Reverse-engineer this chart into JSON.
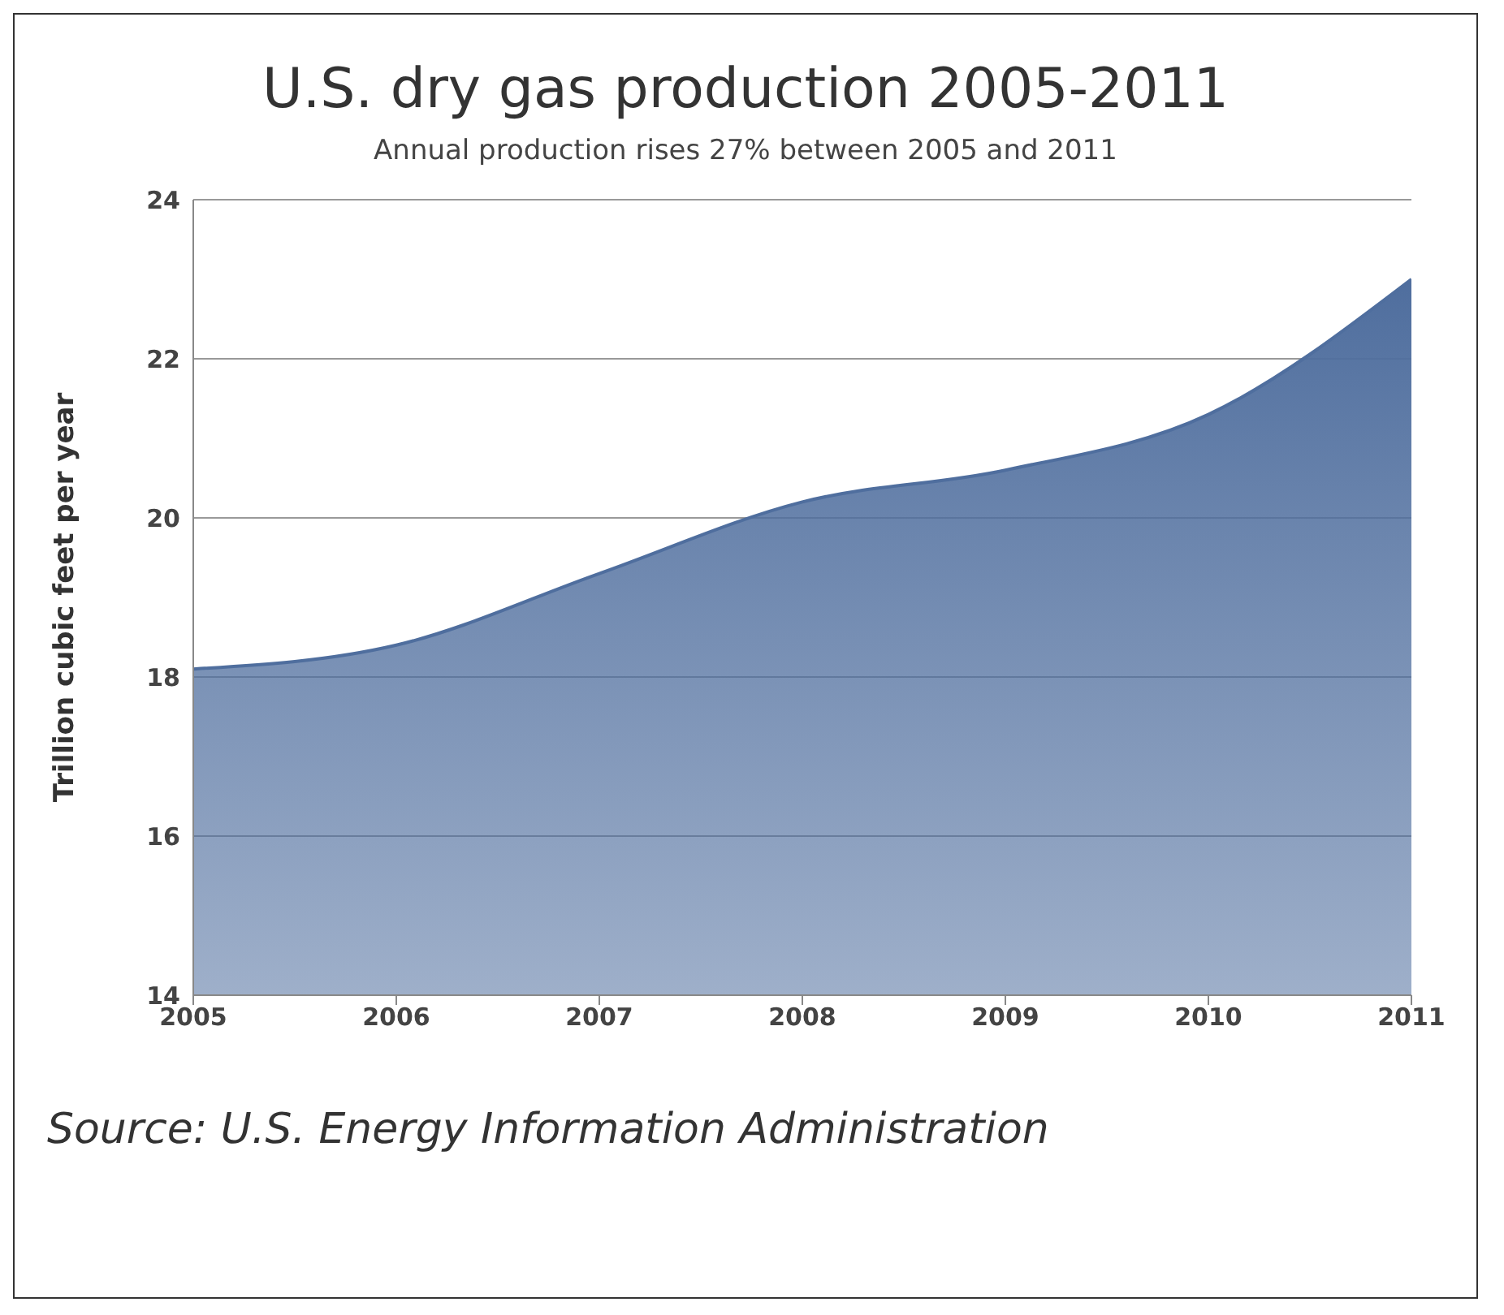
{
  "chart_data": {
    "type": "area",
    "title": "U.S. dry gas production 2005-2011",
    "subtitle": "Annual production rises 27% between 2005 and 2011",
    "ylabel": "Trillion cubic feet per year",
    "annotations": [
      "Source: U.S. Energy Information Administration"
    ],
    "x": [
      2005,
      2006,
      2007,
      2008,
      2009,
      2010,
      2011
    ],
    "xlim": [
      2005,
      2011
    ],
    "xticks": [
      2005,
      2006,
      2007,
      2008,
      2009,
      2010,
      2011
    ],
    "series": [
      {
        "color": "#4f6e9e",
        "values": [
          18.1,
          18.4,
          19.3,
          20.2,
          20.6,
          21.3,
          23.0
        ]
      }
    ],
    "ylim": [
      14,
      24
    ],
    "yticks": [
      14,
      16,
      18,
      20,
      22,
      24
    ],
    "grid": "y",
    "legend": false
  }
}
